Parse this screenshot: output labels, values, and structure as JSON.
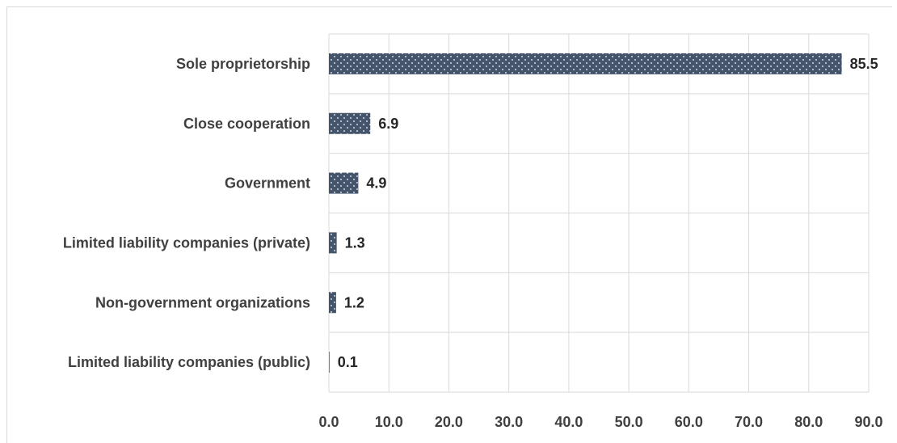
{
  "chart_data": {
    "type": "bar",
    "orientation": "horizontal",
    "categories": [
      "Sole proprietorship",
      "Close cooperation",
      "Government",
      "Limited liability companies (private)",
      "Non-government organizations",
      "Limited liability companies (public)"
    ],
    "values": [
      85.5,
      6.9,
      4.9,
      1.3,
      1.2,
      0.1
    ],
    "value_labels": [
      "85.5",
      "6.9",
      "4.9",
      "1.3",
      "1.2",
      "0.1"
    ],
    "xlim": [
      0,
      90
    ],
    "xticks": [
      "0.0",
      "10.0",
      "20.0",
      "30.0",
      "40.0",
      "50.0",
      "60.0",
      "70.0",
      "80.0",
      "90.0"
    ],
    "grid": true,
    "bar_color": "#44546a",
    "bar_pattern": "dotted",
    "title": "",
    "xlabel": "",
    "ylabel": ""
  }
}
